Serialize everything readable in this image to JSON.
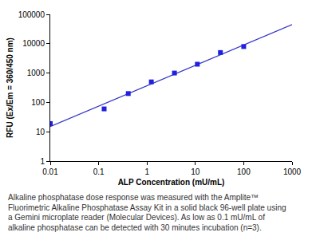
{
  "chart_data": {
    "type": "scatter",
    "x_label": "ALP Concentration (mU/mL)",
    "y_label": "RFU (Ex/Em = 360/450 nm)",
    "log": true,
    "grid": false,
    "xlim": [
      0.01,
      1000
    ],
    "xticks": [
      0.01,
      0.1,
      1,
      10,
      100,
      1000
    ],
    "ylim": [
      1,
      100000
    ],
    "yticks": [
      1,
      10,
      100,
      1000,
      10000,
      100000
    ],
    "series": [
      {
        "type": "scatter",
        "marker": "square",
        "color": "#2020e0",
        "x": [
          0.01,
          0.13,
          0.41,
          1.23,
          3.7,
          11,
          33,
          100
        ],
        "values": [
          19,
          60,
          200,
          500,
          1000,
          2000,
          5000,
          8000
        ]
      },
      {
        "type": "line",
        "line_style": "solid",
        "color": "#3535c8",
        "x": [
          0.01,
          1000
        ],
        "values": [
          15,
          45000
        ]
      }
    ],
    "caption": [
      "Alkaline phosphatase dose response was measured with the Amplite™",
      "Fluorimetric Alkaline Phosphatase Assay Kit in a solid black 96-well plate using",
      "a Gemini microplate reader (Molecular Devices). As low as 0.1 mU/mL of",
      "alkaline phosphatase can be detected with 30 minutes incubation (n=3)."
    ]
  }
}
